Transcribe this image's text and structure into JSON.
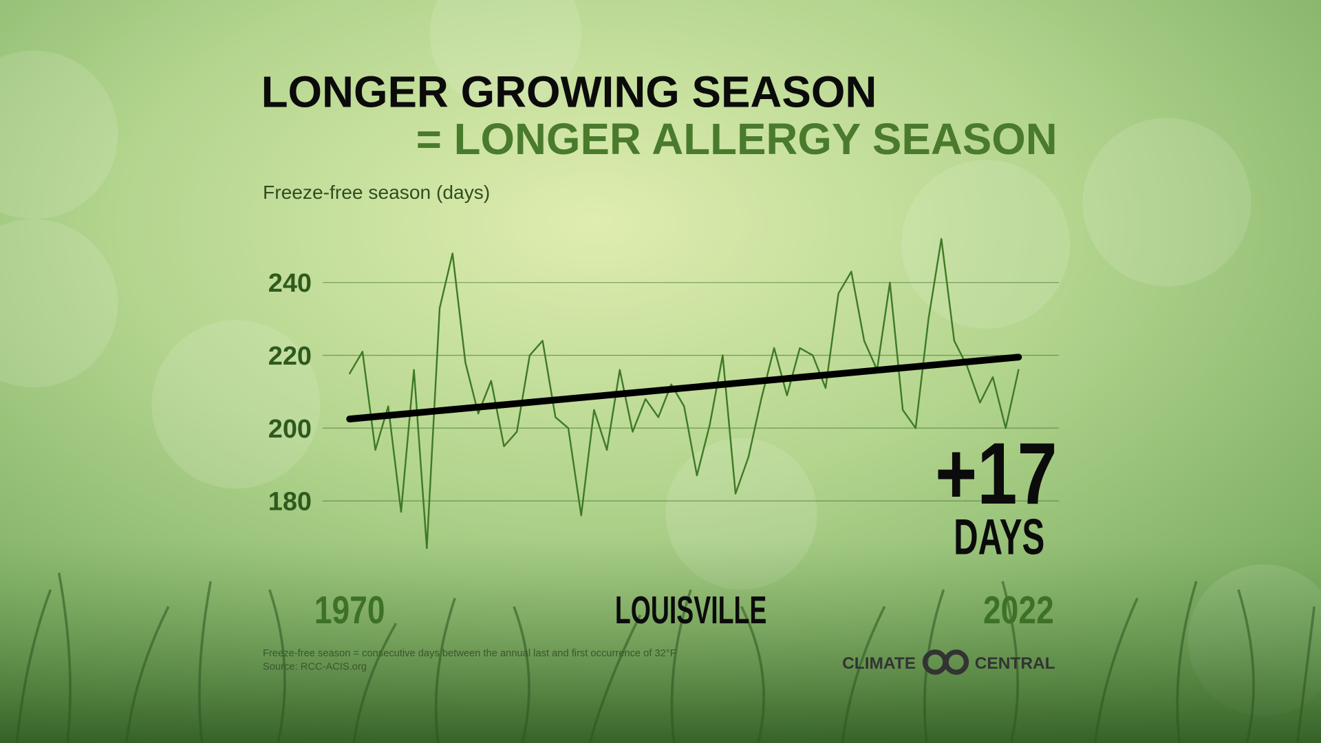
{
  "chart_data": {
    "type": "line",
    "title": "LONGER GROWING SEASON",
    "subtitle": "= LONGER ALLERGY SEASON",
    "y_label": "Freeze-free season (days)",
    "location": "LOUISVILLE",
    "annotation": "+17",
    "annotation_unit": "DAYS",
    "footnote": [
      "Freeze-free season = consecutive days between the annual last and first occurrence of 32°F",
      "Source: RCC-ACIS.org"
    ],
    "logo": [
      "CLIMATE",
      "CENTRAL"
    ],
    "x": [
      1970,
      1971,
      1972,
      1973,
      1974,
      1975,
      1976,
      1977,
      1978,
      1979,
      1980,
      1981,
      1982,
      1983,
      1984,
      1985,
      1986,
      1987,
      1988,
      1989,
      1990,
      1991,
      1992,
      1993,
      1994,
      1995,
      1996,
      1997,
      1998,
      1999,
      2000,
      2001,
      2002,
      2003,
      2004,
      2005,
      2006,
      2007,
      2008,
      2009,
      2010,
      2011,
      2012,
      2013,
      2014,
      2015,
      2016,
      2017,
      2018,
      2019,
      2020,
      2021,
      2022
    ],
    "series": [
      {
        "name": "Freeze-free season",
        "color": "#3f7a26",
        "values": [
          215,
          221,
          194,
          206,
          177,
          216,
          167,
          233,
          248,
          218,
          204,
          213,
          195,
          199,
          220,
          224,
          203,
          200,
          176,
          205,
          194,
          216,
          199,
          208,
          203,
          212,
          206,
          187,
          201,
          220,
          182,
          192,
          208,
          222,
          209,
          222,
          220,
          211,
          237,
          243,
          224,
          216,
          240,
          205,
          200,
          230,
          252,
          224,
          217,
          207,
          214,
          200,
          216
        ]
      },
      {
        "name": "Trend",
        "color": "#000000",
        "x": [
          1970,
          2022
        ],
        "values": [
          202.5,
          219.5
        ]
      }
    ],
    "xlim": [
      1970,
      2022
    ],
    "xticks": [
      1970,
      2022
    ],
    "ylim": [
      160,
      260
    ],
    "yticks": [
      180,
      200,
      220,
      240
    ],
    "grid": true
  }
}
